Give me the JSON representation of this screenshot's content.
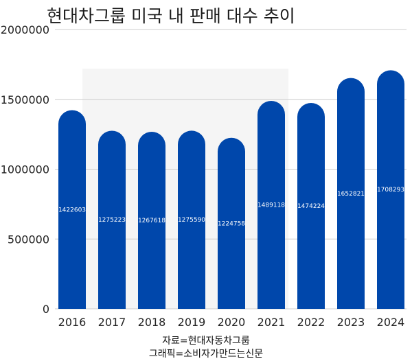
{
  "chart_data": {
    "type": "bar",
    "title": "현대차그룹 미국 내 판매 대수 추이",
    "categories": [
      "2016",
      "2017",
      "2018",
      "2019",
      "2020",
      "2021",
      "2022",
      "2023",
      "2024"
    ],
    "values": [
      1422603,
      1275223,
      1267618,
      1275590,
      1224758,
      1489118,
      1474224,
      1652821,
      1708293
    ],
    "value_labels": [
      "1422603",
      "1275223",
      "1267618",
      "1275590",
      "1224758",
      "1489118",
      "1474224",
      "1652821",
      "1708293"
    ],
    "yticks": [
      "0",
      "500000",
      "1000000",
      "1500000",
      "2000000"
    ],
    "ylim": [
      0,
      2000000
    ],
    "xlabel": "",
    "ylabel": "",
    "grid": true,
    "bar_color": "#0047ab"
  },
  "source": {
    "data_source": "자료=현대자동차그룹",
    "graphic_credit": "그래픽=소비자가만드는신문"
  }
}
